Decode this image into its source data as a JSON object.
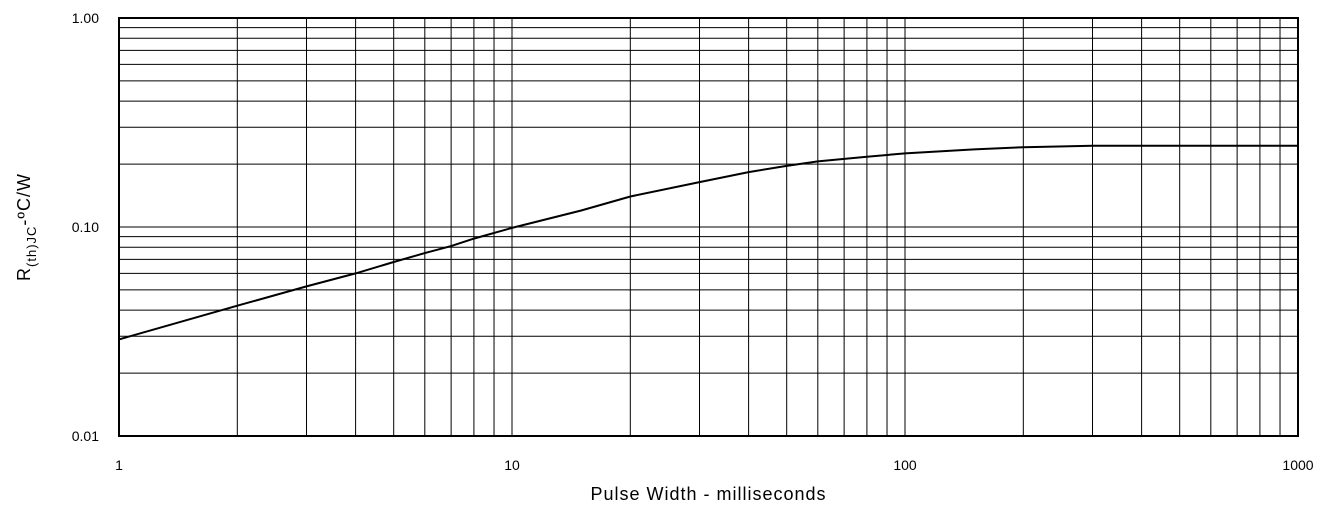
{
  "chart_data": {
    "type": "line",
    "xlabel": "Pulse Width - milliseconds",
    "ylabel": {
      "main": "R",
      "subscript": "(th)JC",
      "suffix": "-ºC/W"
    },
    "x_scale": "log",
    "y_scale": "log",
    "xlim": [
      1,
      1000
    ],
    "ylim": [
      0.01,
      1.0
    ],
    "x_tick_labels": [
      "1",
      "10",
      "100",
      "1000"
    ],
    "y_tick_labels": [
      "0.01",
      "0.10",
      "1.00"
    ],
    "grid": true,
    "series": [
      {
        "x": [
          1,
          2,
          3,
          4,
          5,
          6,
          7,
          8,
          10,
          15,
          20,
          30,
          40,
          50,
          60,
          80,
          100,
          150,
          200,
          300,
          500,
          1000
        ],
        "values": [
          0.029,
          0.042,
          0.052,
          0.06,
          0.068,
          0.075,
          0.081,
          0.088,
          0.099,
          0.12,
          0.14,
          0.164,
          0.183,
          0.196,
          0.206,
          0.217,
          0.225,
          0.235,
          0.241,
          0.245,
          0.245,
          0.245
        ]
      }
    ]
  }
}
